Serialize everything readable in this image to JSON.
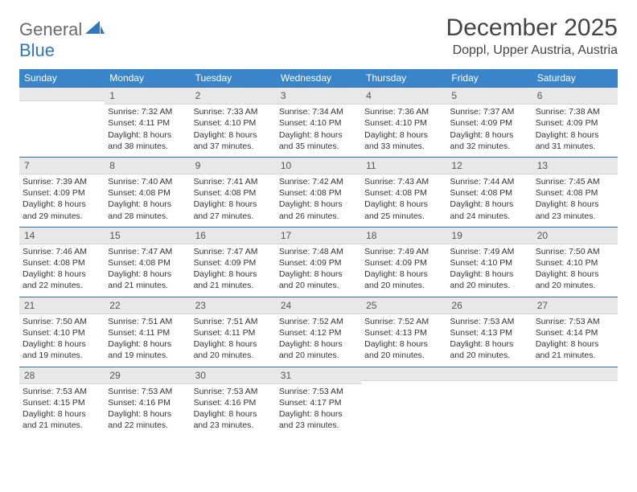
{
  "brand": {
    "part1": "General",
    "part2": "Blue"
  },
  "title": "December 2025",
  "location": "Doppl, Upper Austria, Austria",
  "colors": {
    "header_bg": "#3a85c9",
    "header_text": "#ffffff",
    "day_bg": "#e8e8e8",
    "rule": "#3a6fa5",
    "brand_gray": "#6a6a6a",
    "brand_blue": "#2f77bd"
  },
  "weekdays": [
    "Sunday",
    "Monday",
    "Tuesday",
    "Wednesday",
    "Thursday",
    "Friday",
    "Saturday"
  ],
  "weeks": [
    [
      {
        "n": "",
        "sunrise": "",
        "sunset": "",
        "daylight": ""
      },
      {
        "n": "1",
        "sunrise": "Sunrise: 7:32 AM",
        "sunset": "Sunset: 4:11 PM",
        "daylight": "Daylight: 8 hours and 38 minutes."
      },
      {
        "n": "2",
        "sunrise": "Sunrise: 7:33 AM",
        "sunset": "Sunset: 4:10 PM",
        "daylight": "Daylight: 8 hours and 37 minutes."
      },
      {
        "n": "3",
        "sunrise": "Sunrise: 7:34 AM",
        "sunset": "Sunset: 4:10 PM",
        "daylight": "Daylight: 8 hours and 35 minutes."
      },
      {
        "n": "4",
        "sunrise": "Sunrise: 7:36 AM",
        "sunset": "Sunset: 4:10 PM",
        "daylight": "Daylight: 8 hours and 33 minutes."
      },
      {
        "n": "5",
        "sunrise": "Sunrise: 7:37 AM",
        "sunset": "Sunset: 4:09 PM",
        "daylight": "Daylight: 8 hours and 32 minutes."
      },
      {
        "n": "6",
        "sunrise": "Sunrise: 7:38 AM",
        "sunset": "Sunset: 4:09 PM",
        "daylight": "Daylight: 8 hours and 31 minutes."
      }
    ],
    [
      {
        "n": "7",
        "sunrise": "Sunrise: 7:39 AM",
        "sunset": "Sunset: 4:09 PM",
        "daylight": "Daylight: 8 hours and 29 minutes."
      },
      {
        "n": "8",
        "sunrise": "Sunrise: 7:40 AM",
        "sunset": "Sunset: 4:08 PM",
        "daylight": "Daylight: 8 hours and 28 minutes."
      },
      {
        "n": "9",
        "sunrise": "Sunrise: 7:41 AM",
        "sunset": "Sunset: 4:08 PM",
        "daylight": "Daylight: 8 hours and 27 minutes."
      },
      {
        "n": "10",
        "sunrise": "Sunrise: 7:42 AM",
        "sunset": "Sunset: 4:08 PM",
        "daylight": "Daylight: 8 hours and 26 minutes."
      },
      {
        "n": "11",
        "sunrise": "Sunrise: 7:43 AM",
        "sunset": "Sunset: 4:08 PM",
        "daylight": "Daylight: 8 hours and 25 minutes."
      },
      {
        "n": "12",
        "sunrise": "Sunrise: 7:44 AM",
        "sunset": "Sunset: 4:08 PM",
        "daylight": "Daylight: 8 hours and 24 minutes."
      },
      {
        "n": "13",
        "sunrise": "Sunrise: 7:45 AM",
        "sunset": "Sunset: 4:08 PM",
        "daylight": "Daylight: 8 hours and 23 minutes."
      }
    ],
    [
      {
        "n": "14",
        "sunrise": "Sunrise: 7:46 AM",
        "sunset": "Sunset: 4:08 PM",
        "daylight": "Daylight: 8 hours and 22 minutes."
      },
      {
        "n": "15",
        "sunrise": "Sunrise: 7:47 AM",
        "sunset": "Sunset: 4:08 PM",
        "daylight": "Daylight: 8 hours and 21 minutes."
      },
      {
        "n": "16",
        "sunrise": "Sunrise: 7:47 AM",
        "sunset": "Sunset: 4:09 PM",
        "daylight": "Daylight: 8 hours and 21 minutes."
      },
      {
        "n": "17",
        "sunrise": "Sunrise: 7:48 AM",
        "sunset": "Sunset: 4:09 PM",
        "daylight": "Daylight: 8 hours and 20 minutes."
      },
      {
        "n": "18",
        "sunrise": "Sunrise: 7:49 AM",
        "sunset": "Sunset: 4:09 PM",
        "daylight": "Daylight: 8 hours and 20 minutes."
      },
      {
        "n": "19",
        "sunrise": "Sunrise: 7:49 AM",
        "sunset": "Sunset: 4:10 PM",
        "daylight": "Daylight: 8 hours and 20 minutes."
      },
      {
        "n": "20",
        "sunrise": "Sunrise: 7:50 AM",
        "sunset": "Sunset: 4:10 PM",
        "daylight": "Daylight: 8 hours and 20 minutes."
      }
    ],
    [
      {
        "n": "21",
        "sunrise": "Sunrise: 7:50 AM",
        "sunset": "Sunset: 4:10 PM",
        "daylight": "Daylight: 8 hours and 19 minutes."
      },
      {
        "n": "22",
        "sunrise": "Sunrise: 7:51 AM",
        "sunset": "Sunset: 4:11 PM",
        "daylight": "Daylight: 8 hours and 19 minutes."
      },
      {
        "n": "23",
        "sunrise": "Sunrise: 7:51 AM",
        "sunset": "Sunset: 4:11 PM",
        "daylight": "Daylight: 8 hours and 20 minutes."
      },
      {
        "n": "24",
        "sunrise": "Sunrise: 7:52 AM",
        "sunset": "Sunset: 4:12 PM",
        "daylight": "Daylight: 8 hours and 20 minutes."
      },
      {
        "n": "25",
        "sunrise": "Sunrise: 7:52 AM",
        "sunset": "Sunset: 4:13 PM",
        "daylight": "Daylight: 8 hours and 20 minutes."
      },
      {
        "n": "26",
        "sunrise": "Sunrise: 7:53 AM",
        "sunset": "Sunset: 4:13 PM",
        "daylight": "Daylight: 8 hours and 20 minutes."
      },
      {
        "n": "27",
        "sunrise": "Sunrise: 7:53 AM",
        "sunset": "Sunset: 4:14 PM",
        "daylight": "Daylight: 8 hours and 21 minutes."
      }
    ],
    [
      {
        "n": "28",
        "sunrise": "Sunrise: 7:53 AM",
        "sunset": "Sunset: 4:15 PM",
        "daylight": "Daylight: 8 hours and 21 minutes."
      },
      {
        "n": "29",
        "sunrise": "Sunrise: 7:53 AM",
        "sunset": "Sunset: 4:16 PM",
        "daylight": "Daylight: 8 hours and 22 minutes."
      },
      {
        "n": "30",
        "sunrise": "Sunrise: 7:53 AM",
        "sunset": "Sunset: 4:16 PM",
        "daylight": "Daylight: 8 hours and 23 minutes."
      },
      {
        "n": "31",
        "sunrise": "Sunrise: 7:53 AM",
        "sunset": "Sunset: 4:17 PM",
        "daylight": "Daylight: 8 hours and 23 minutes."
      },
      {
        "n": "",
        "sunrise": "",
        "sunset": "",
        "daylight": ""
      },
      {
        "n": "",
        "sunrise": "",
        "sunset": "",
        "daylight": ""
      },
      {
        "n": "",
        "sunrise": "",
        "sunset": "",
        "daylight": ""
      }
    ]
  ]
}
